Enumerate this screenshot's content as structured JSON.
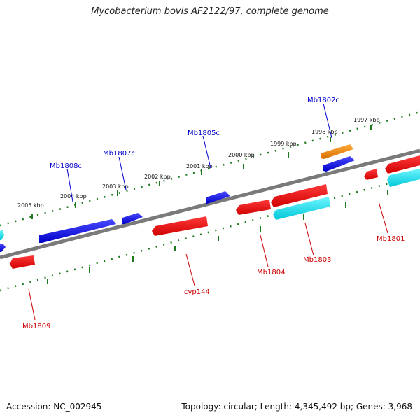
{
  "title": "Mycobacterium bovis AF2122/97, complete genome",
  "footer": {
    "accession": "Accession: NC_002945",
    "stats": "Topology: circular; Length: 4,345,492 bp; Genes: 3,968"
  },
  "scale_labels": [
    "1997 kbp",
    "1998 kbp",
    "1999 kbp",
    "2000 kbp",
    "2001 kbp",
    "2002 kbp",
    "2003 kbp",
    "2004 kbp",
    "2005 kbp"
  ],
  "gene_labels": {
    "Mb1802c": "Mb1802c",
    "Mb1805c": "Mb1805c",
    "Mb1807c": "Mb1807c",
    "Mb1808c": "Mb1808c",
    "Mb1801": "Mb1801",
    "Mb1803": "Mb1803",
    "Mb1804": "Mb1804",
    "cyp144": "cyp144",
    "Mb1809": "Mb1809"
  },
  "colors": {
    "blue": "#0000ee",
    "blue_label": "#0000cc",
    "red": "#ee0000",
    "red_label": "#cc0000",
    "cyan": "#00e5ee",
    "orange": "#ee8a00",
    "backbone": "#7a7a7a",
    "ticks": "#1f7a1f"
  }
}
